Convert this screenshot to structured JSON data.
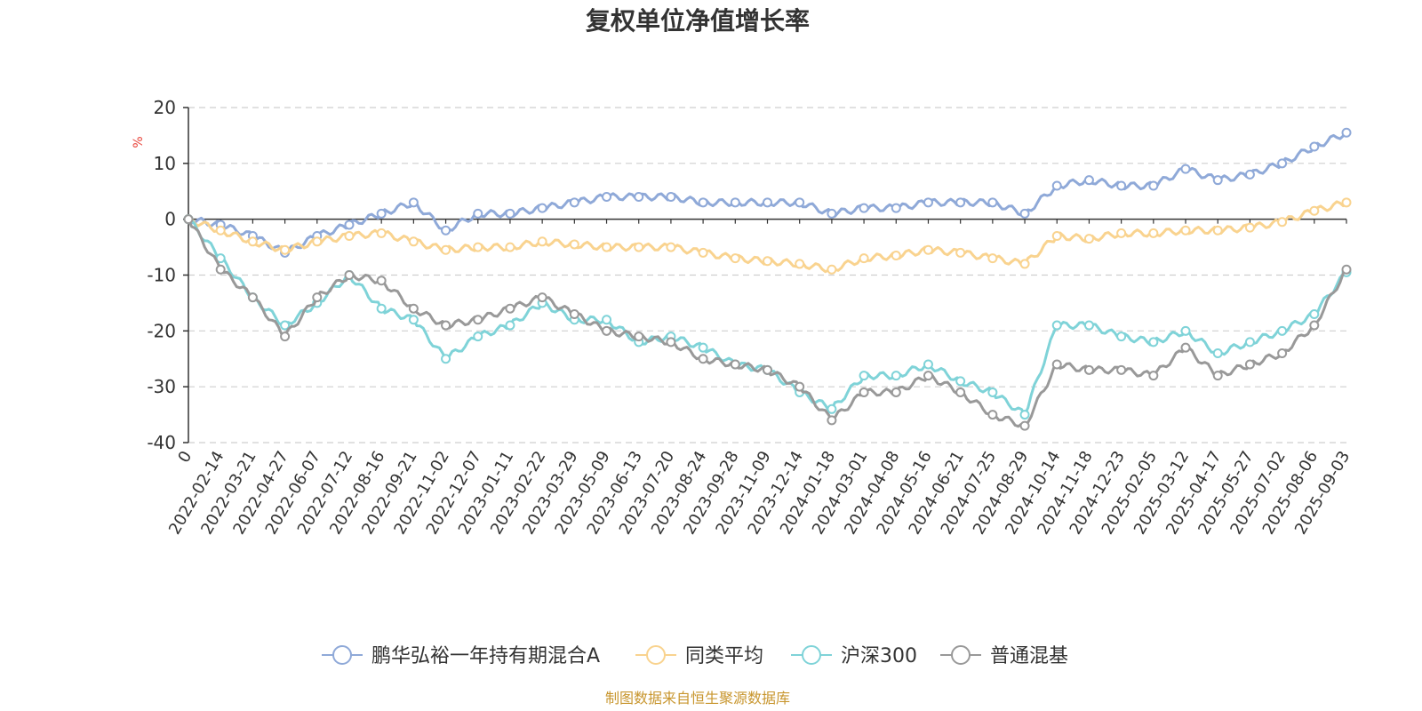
{
  "chart_data": {
    "type": "line",
    "title": "复权单位净值增长率",
    "ylabel": "%",
    "ylim": [
      -40,
      20
    ],
    "yticks": [
      20,
      10,
      0,
      -10,
      -20,
      -30,
      -40
    ],
    "grid": true,
    "legend_position": "bottom",
    "source_note": "制图数据来自恒生聚源数据库",
    "x_labels": [
      "0",
      "2022-02-14",
      "2022-03-21",
      "2022-04-27",
      "2022-06-07",
      "2022-07-12",
      "2022-08-16",
      "2022-09-21",
      "2022-11-02",
      "2022-12-07",
      "2023-01-11",
      "2023-02-22",
      "2023-03-29",
      "2023-05-09",
      "2023-06-13",
      "2023-07-20",
      "2023-08-24",
      "2023-09-28",
      "2023-11-09",
      "2023-12-14",
      "2024-01-18",
      "2024-03-01",
      "2024-04-08",
      "2024-05-16",
      "2024-06-21",
      "2024-07-25",
      "2024-08-29",
      "2024-10-14",
      "2024-11-18",
      "2024-12-23",
      "2025-02-05",
      "2025-03-12",
      "2025-04-17",
      "2025-05-27",
      "2025-07-02",
      "2025-08-06",
      "2025-09-03"
    ],
    "series": [
      {
        "name": "鹏华弘裕一年持有期混合A",
        "color": "#8fa9d8",
        "values": [
          0,
          -1,
          -3,
          -6,
          -3,
          -1,
          1,
          3,
          -2,
          1,
          1,
          2,
          3,
          4,
          4,
          4,
          3,
          3,
          3,
          3,
          1,
          2,
          2,
          3,
          3,
          3,
          1,
          6,
          7,
          6,
          6,
          9,
          7,
          8,
          10,
          13,
          15.5
        ]
      },
      {
        "name": "同类平均",
        "color": "#f9d38f",
        "values": [
          0,
          -2,
          -4,
          -5.5,
          -4,
          -3,
          -2.5,
          -4,
          -5.5,
          -5,
          -5,
          -4,
          -4.5,
          -5,
          -5,
          -5,
          -6,
          -7,
          -7.5,
          -8,
          -9,
          -7,
          -6.5,
          -5.5,
          -6,
          -7,
          -8,
          -3,
          -3.5,
          -2.5,
          -2.5,
          -2,
          -2,
          -1.5,
          -0.5,
          1.5,
          3
        ]
      },
      {
        "name": "沪深300",
        "color": "#7fd3d8",
        "values": [
          0,
          -7,
          -14,
          -19,
          -15,
          -10,
          -16,
          -18,
          -25,
          -21,
          -19,
          -15,
          -18,
          -18,
          -22,
          -21,
          -23,
          -26,
          -27,
          -31,
          -34,
          -28,
          -28,
          -26,
          -29,
          -31,
          -35,
          -19,
          -19,
          -21,
          -22,
          -20,
          -24,
          -22,
          -20,
          -17,
          -9.5
        ]
      },
      {
        "name": "普通混基",
        "color": "#999999",
        "values": [
          0,
          -9,
          -14,
          -21,
          -14,
          -10,
          -11,
          -16,
          -19,
          -18,
          -16,
          -14,
          -17,
          -20,
          -21,
          -22,
          -25,
          -26,
          -27,
          -30,
          -36,
          -31,
          -31,
          -28,
          -31,
          -35,
          -37,
          -26,
          -27,
          -27,
          -28,
          -23,
          -28,
          -26,
          -24,
          -19,
          -9
        ]
      }
    ]
  }
}
